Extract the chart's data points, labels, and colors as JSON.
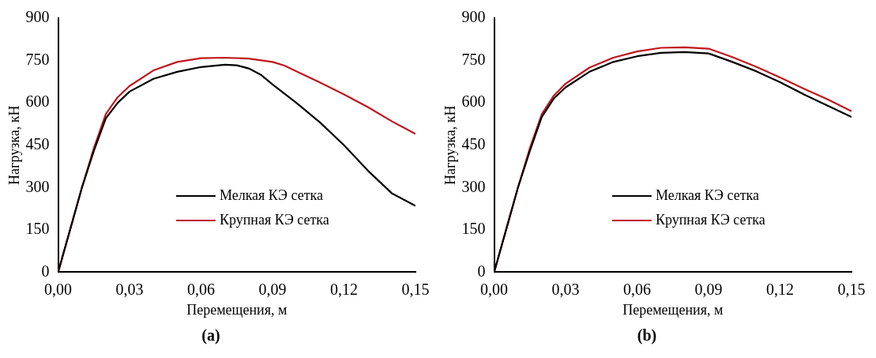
{
  "chart_data": [
    {
      "type": "line",
      "title": "(a)",
      "xlabel": "Перемещения, м",
      "ylabel": "Нагрузка, кН",
      "xlim": [
        0,
        0.15
      ],
      "ylim": [
        0,
        900
      ],
      "xticks": [
        {
          "value": 0,
          "label": "0,00"
        },
        {
          "value": 0.03,
          "label": "0,03"
        },
        {
          "value": 0.06,
          "label": "0,06"
        },
        {
          "value": 0.09,
          "label": "0,09"
        },
        {
          "value": 0.12,
          "label": "0,12"
        },
        {
          "value": 0.15,
          "label": "0,15"
        }
      ],
      "yticks": [
        0,
        150,
        300,
        450,
        600,
        750,
        900
      ],
      "grid": false,
      "legend": "bottom",
      "marker": "none",
      "line_style": "solid",
      "series": [
        {
          "name": "Мелкая КЭ сетка",
          "color": "#000000",
          "x": [
            0,
            0.005,
            0.01,
            0.015,
            0.02,
            0.025,
            0.03,
            0.04,
            0.05,
            0.06,
            0.07,
            0.075,
            0.08,
            0.085,
            0.09,
            0.1,
            0.11,
            0.12,
            0.13,
            0.14,
            0.15
          ],
          "values": [
            0,
            150,
            300,
            430,
            545,
            600,
            640,
            685,
            710,
            727,
            735,
            733,
            722,
            700,
            665,
            600,
            530,
            450,
            360,
            280,
            235
          ]
        },
        {
          "name": "Крупная КЭ сетка",
          "color": "#c0161d",
          "x": [
            0,
            0.005,
            0.01,
            0.015,
            0.02,
            0.025,
            0.03,
            0.04,
            0.05,
            0.06,
            0.07,
            0.08,
            0.09,
            0.095,
            0.1,
            0.11,
            0.12,
            0.13,
            0.14,
            0.15
          ],
          "values": [
            0,
            150,
            300,
            440,
            560,
            620,
            660,
            715,
            745,
            758,
            760,
            757,
            745,
            732,
            712,
            672,
            630,
            585,
            535,
            490
          ]
        }
      ]
    },
    {
      "type": "line",
      "title": "(b)",
      "xlabel": "Перемещения, м",
      "ylabel": "Нагрузка, кН",
      "xlim": [
        0,
        0.15
      ],
      "ylim": [
        0,
        900
      ],
      "xticks": [
        {
          "value": 0,
          "label": "0,00"
        },
        {
          "value": 0.03,
          "label": "0,03"
        },
        {
          "value": 0.06,
          "label": "0,06"
        },
        {
          "value": 0.09,
          "label": "0,09"
        },
        {
          "value": 0.12,
          "label": "0,12"
        },
        {
          "value": 0.15,
          "label": "0,15"
        }
      ],
      "yticks": [
        0,
        150,
        300,
        450,
        600,
        750,
        900
      ],
      "grid": false,
      "legend": "bottom",
      "marker": "none",
      "line_style": "solid",
      "series": [
        {
          "name": "Мелкая КЭ сетка",
          "color": "#000000",
          "x": [
            0,
            0.005,
            0.01,
            0.015,
            0.02,
            0.025,
            0.03,
            0.04,
            0.05,
            0.06,
            0.07,
            0.08,
            0.09,
            0.1,
            0.11,
            0.12,
            0.13,
            0.14,
            0.15
          ],
          "values": [
            0,
            150,
            300,
            430,
            550,
            615,
            655,
            710,
            745,
            765,
            777,
            780,
            775,
            745,
            712,
            673,
            630,
            590,
            550
          ]
        },
        {
          "name": "Крупная КЭ сетка",
          "color": "#c0161d",
          "x": [
            0,
            0.005,
            0.01,
            0.015,
            0.02,
            0.025,
            0.03,
            0.04,
            0.05,
            0.06,
            0.07,
            0.08,
            0.09,
            0.1,
            0.11,
            0.12,
            0.13,
            0.14,
            0.15
          ],
          "values": [
            0,
            150,
            300,
            440,
            560,
            625,
            668,
            725,
            760,
            782,
            795,
            797,
            792,
            762,
            728,
            690,
            650,
            612,
            570
          ]
        }
      ]
    }
  ]
}
